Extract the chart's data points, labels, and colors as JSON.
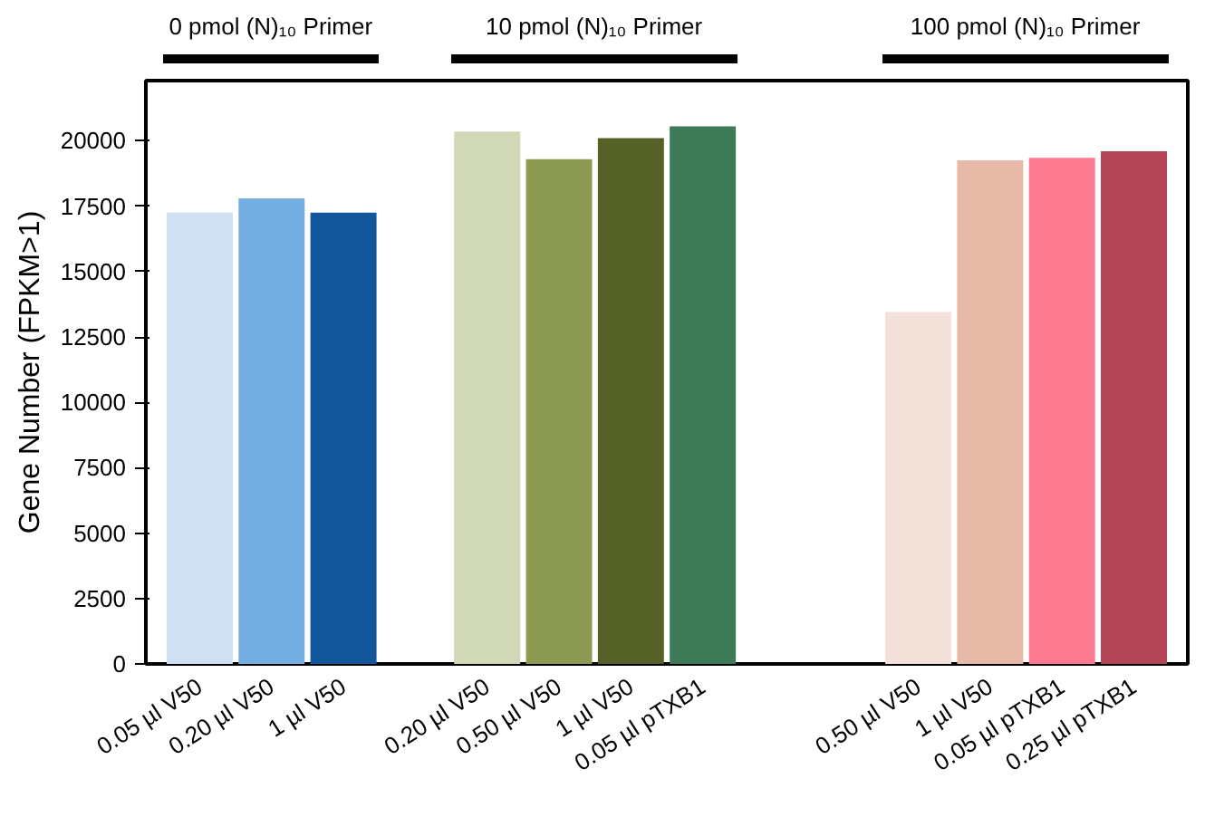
{
  "chart_data": {
    "type": "bar",
    "ylabel": "Gene Number (FPKM>1)",
    "categories": [
      "0.05 µl V50",
      "0.20 µl V50",
      "1 µl V50",
      null,
      "0.20 µl V50",
      "0.50 µl V50",
      "1 µl V50",
      "0.05 µl pTXB1",
      null,
      null,
      "0.50 µl V50",
      "1 µl V50",
      "0.05 µl pTXB1",
      "0.25 µl pTXB1"
    ],
    "values": [
      17250,
      17800,
      17250,
      null,
      20350,
      19300,
      20100,
      20550,
      null,
      null,
      13450,
      19250,
      19350,
      19600
    ],
    "colors": [
      "#cfe0f3",
      "#74ade2",
      "#12579b",
      null,
      "#d0d8b8",
      "#8c9a52",
      "#556126",
      "#3d7a57",
      null,
      null,
      "#f4e1da",
      "#e6baa6",
      "#fb7a90",
      "#b44557"
    ],
    "ylim": [
      0,
      22300
    ],
    "yticks": [
      0,
      2500,
      5000,
      7500,
      10000,
      12500,
      15000,
      17500,
      20000
    ],
    "grid": false,
    "annotations": [
      "0 pmol (N)₁₀ Primer",
      "10 pmol (N)₁₀ Primer",
      "100 pmol (N)₁₀ Primer"
    ]
  }
}
